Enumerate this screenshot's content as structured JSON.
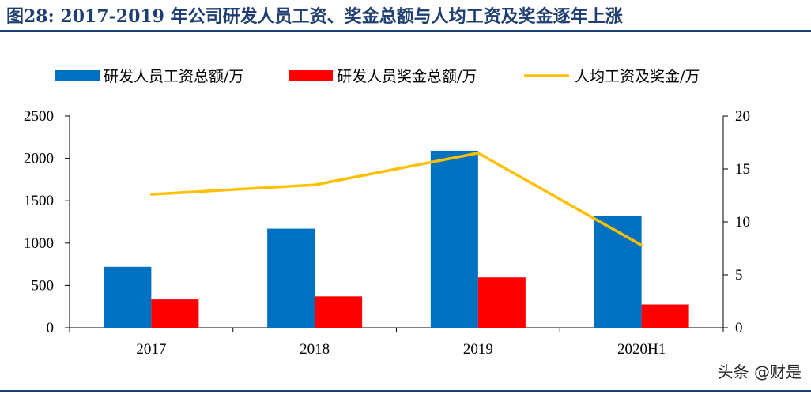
{
  "header": {
    "title": "图28:  2017-2019 年公司研发人员工资、奖金总额与人均工资及奖金逐年上涨"
  },
  "watermark": "头条 @财是",
  "colors": {
    "primary_bar": "#0070c0",
    "secondary_bar": "#ff0000",
    "line": "#ffc000",
    "title": "#1f3f72"
  },
  "chart_data": {
    "type": "bar",
    "categories": [
      "2017",
      "2018",
      "2019",
      "2020H1"
    ],
    "series": [
      {
        "name": "研发人员工资总额/万",
        "kind": "bar",
        "axis": "left",
        "values": [
          720,
          1170,
          2090,
          1320
        ]
      },
      {
        "name": "研发人员奖金总额/万",
        "kind": "bar",
        "axis": "left",
        "values": [
          335,
          370,
          595,
          275
        ]
      },
      {
        "name": "人均工资及奖金/万",
        "kind": "line",
        "axis": "right",
        "values": [
          12.6,
          13.5,
          16.5,
          7.8
        ]
      }
    ],
    "ylim_left": [
      0,
      2500
    ],
    "yticks_left": [
      "0",
      "500",
      "1000",
      "1500",
      "2000",
      "2500"
    ],
    "ylim_right": [
      0,
      20
    ],
    "yticks_right": [
      "0",
      "5",
      "10",
      "15",
      "20"
    ],
    "grid": false,
    "legend_position": "top"
  }
}
